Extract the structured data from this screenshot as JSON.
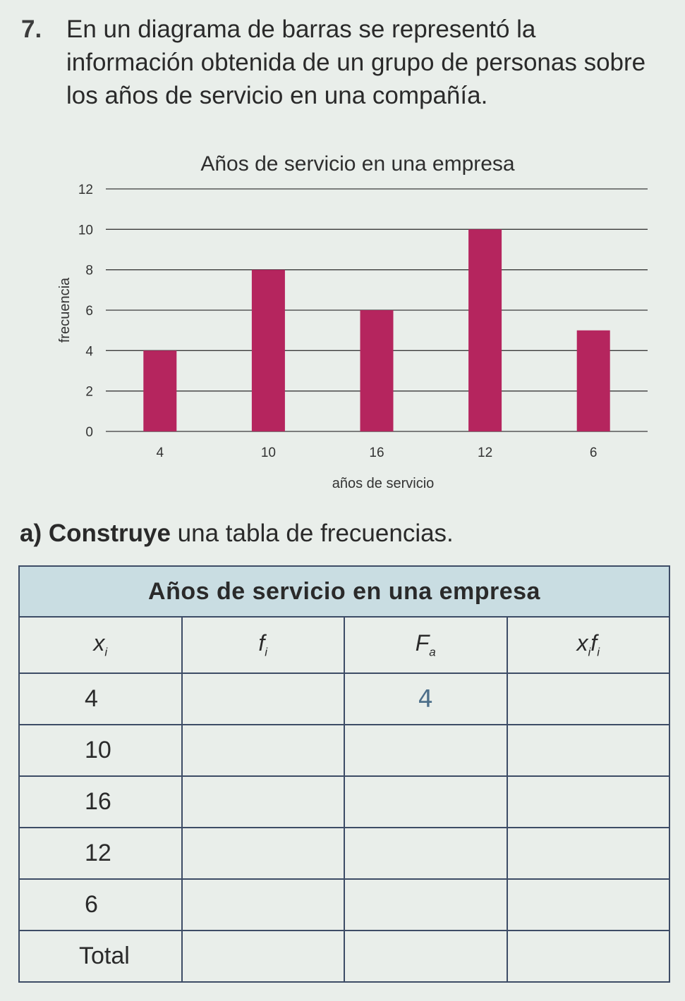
{
  "problem": {
    "number": "7.",
    "text": "En un diagrama de barras se representó la información obtenida de un grupo de personas sobre los años de servicio en una compañía."
  },
  "chart_data": {
    "type": "bar",
    "title": "Años de servicio en una empresa",
    "xlabel": "años de servicio",
    "ylabel": "frecuencia",
    "categories": [
      "4",
      "10",
      "16",
      "12",
      "6"
    ],
    "values": [
      4,
      8,
      6,
      10,
      5
    ],
    "ylim": [
      0,
      12
    ],
    "yticks": [
      "0",
      "2",
      "4",
      "6",
      "8",
      "10",
      "12"
    ],
    "grid": true,
    "bar_color": "#b5255e"
  },
  "subquestion": {
    "letter": "a)",
    "bold": "Construye",
    "rest": " una tabla de frecuencias."
  },
  "table": {
    "title": "Años de servicio en una empresa",
    "headers": {
      "xi_base": "x",
      "xi_sub": "i",
      "fi_base": "f",
      "fi_sub": "i",
      "fa_base": "F",
      "fa_sub": "a",
      "xifi_base1": "x",
      "xifi_sub1": "i",
      "xifi_base2": "f",
      "xifi_sub2": "i"
    },
    "rows": [
      {
        "xi": "4",
        "fa": "4"
      },
      {
        "xi": "10",
        "fa": ""
      },
      {
        "xi": "16",
        "fa": ""
      },
      {
        "xi": "12",
        "fa": ""
      },
      {
        "xi": "6",
        "fa": ""
      },
      {
        "xi": "Total",
        "fa": ""
      }
    ],
    "title_bg": "#c9dde2"
  }
}
